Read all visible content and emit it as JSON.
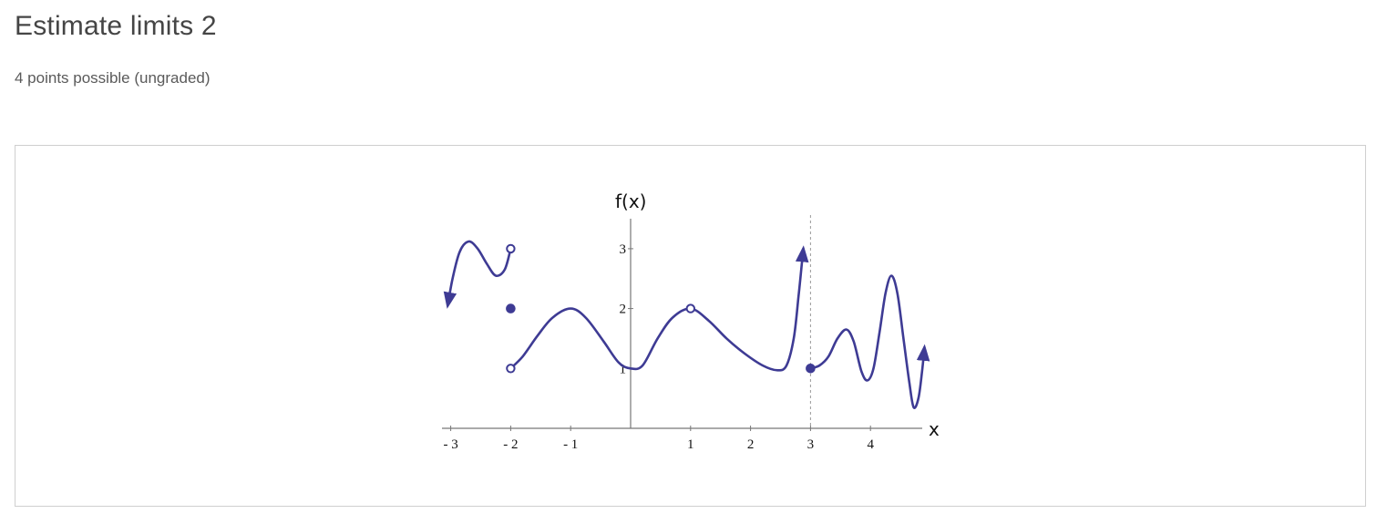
{
  "problem": {
    "title": "Estimate limits 2",
    "points": "4 points possible (ungraded)"
  },
  "graph": {
    "y_axis_label": "f(x)",
    "x_axis_label": "x",
    "x_ticks": [
      {
        "value": -3,
        "label": "- 3"
      },
      {
        "value": -2,
        "label": "- 2"
      },
      {
        "value": -1,
        "label": "- 1"
      },
      {
        "value": 1,
        "label": "1"
      },
      {
        "value": 2,
        "label": "2"
      },
      {
        "value": 3,
        "label": "3"
      },
      {
        "value": 4,
        "label": "4"
      }
    ],
    "y_ticks": [
      {
        "value": 1,
        "label": "1"
      },
      {
        "value": 2,
        "label": "2"
      },
      {
        "value": 3,
        "label": "3"
      }
    ],
    "curve_color": "#3e3b94",
    "axis_color": "#777777",
    "vertical_guide_x": 3,
    "curves": [
      [
        [
          -2.0,
          3.0
        ],
        [
          -2.1,
          2.65
        ],
        [
          -2.25,
          2.55
        ],
        [
          -2.4,
          2.75
        ],
        [
          -2.55,
          3.0
        ],
        [
          -2.7,
          3.12
        ],
        [
          -2.85,
          2.95
        ],
        [
          -2.97,
          2.5
        ],
        [
          -3.05,
          2.05
        ]
      ],
      [
        [
          -2.0,
          1.0
        ],
        [
          -1.8,
          1.2
        ],
        [
          -1.55,
          1.55
        ],
        [
          -1.3,
          1.85
        ],
        [
          -1.0,
          2.0
        ],
        [
          -0.75,
          1.85
        ],
        [
          -0.45,
          1.45
        ],
        [
          -0.2,
          1.1
        ],
        [
          0.0,
          1.0
        ],
        [
          0.2,
          1.05
        ],
        [
          0.45,
          1.5
        ],
        [
          0.7,
          1.85
        ],
        [
          1.0,
          2.0
        ],
        [
          1.3,
          1.8
        ],
        [
          1.6,
          1.5
        ],
        [
          1.9,
          1.25
        ],
        [
          2.2,
          1.05
        ],
        [
          2.45,
          0.97
        ],
        [
          2.6,
          1.05
        ],
        [
          2.72,
          1.5
        ],
        [
          2.8,
          2.2
        ],
        [
          2.86,
          2.8
        ],
        [
          2.88,
          3.0
        ]
      ],
      [
        [
          3.0,
          1.0
        ],
        [
          3.15,
          1.05
        ],
        [
          3.3,
          1.2
        ],
        [
          3.45,
          1.5
        ],
        [
          3.6,
          1.65
        ],
        [
          3.72,
          1.45
        ],
        [
          3.85,
          0.95
        ],
        [
          3.95,
          0.8
        ],
        [
          4.05,
          1.0
        ],
        [
          4.15,
          1.6
        ],
        [
          4.25,
          2.25
        ],
        [
          4.35,
          2.55
        ],
        [
          4.45,
          2.25
        ],
        [
          4.55,
          1.5
        ],
        [
          4.65,
          0.75
        ],
        [
          4.72,
          0.35
        ],
        [
          4.8,
          0.5
        ],
        [
          4.86,
          0.95
        ],
        [
          4.9,
          1.35
        ]
      ]
    ],
    "arrow_ends": [
      {
        "curve": 0,
        "end": "last"
      },
      {
        "curve": 1,
        "end": "last"
      },
      {
        "curve": 2,
        "end": "last"
      }
    ],
    "open_points": [
      [
        -2,
        3
      ],
      [
        -2,
        1
      ],
      [
        1,
        2
      ]
    ],
    "closed_points": [
      [
        -2,
        2
      ],
      [
        3,
        1
      ]
    ]
  }
}
